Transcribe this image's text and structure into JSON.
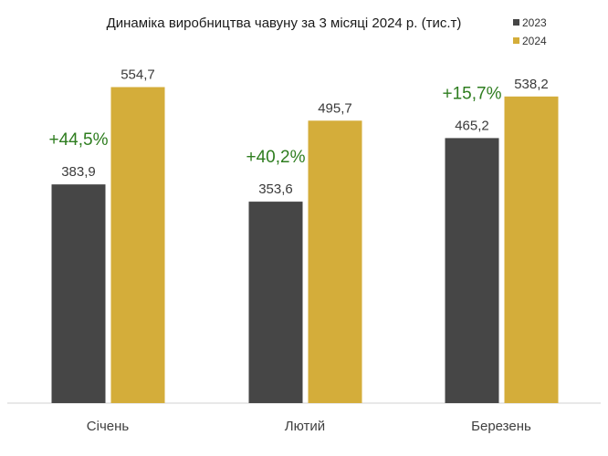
{
  "chart_data": {
    "type": "bar",
    "title": "Динаміка виробництва чавуну за 3 місяці 2024 р. (тис.т)",
    "categories": [
      "Січень",
      "Лютий",
      "Березень"
    ],
    "series": [
      {
        "name": "2023",
        "values": [
          383.9,
          353.6,
          465.2
        ],
        "labels": [
          "383,9",
          "353,6",
          "465,2"
        ],
        "color": "#464646"
      },
      {
        "name": "2024",
        "values": [
          554.7,
          495.7,
          538.2
        ],
        "labels": [
          "554,7",
          "495,7",
          "538,2"
        ],
        "color": "#d4ad3a"
      }
    ],
    "annotations": [
      "+44,5%",
      "+40,2%",
      "+15,7%"
    ],
    "annotation_color": "#2e7d1f",
    "ylim": [
      0,
      600
    ],
    "grid": false,
    "legend_position": "top-right"
  }
}
